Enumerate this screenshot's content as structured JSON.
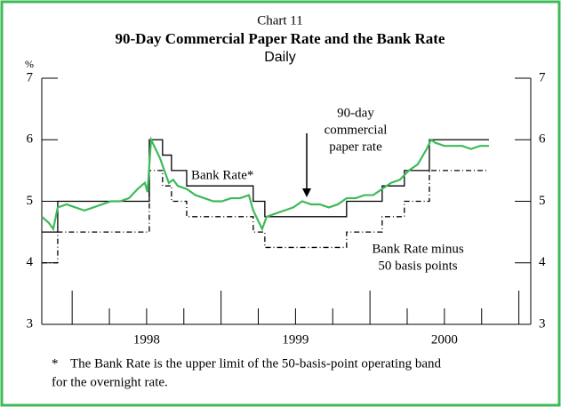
{
  "chart_data": {
    "type": "line",
    "supertitle": "Chart 11",
    "title": "90-Day Commercial Paper Rate and the Bank Rate",
    "subtitle": "Daily",
    "ylabel": "%",
    "xlim": [
      1997.796,
      2001.08
    ],
    "ylim": [
      3,
      7
    ],
    "yticks": [
      3,
      4,
      5,
      6,
      7
    ],
    "xticks": [
      {
        "value": 1998.5,
        "label": "1998"
      },
      {
        "value": 1999.5,
        "label": "1999"
      },
      {
        "value": 2000.5,
        "label": "2000"
      }
    ],
    "xmajorticks": [
      1998,
      1999,
      2000,
      2001
    ],
    "xminorticks": [
      1998.25,
      1998.5,
      1998.75,
      1999.25,
      1999.5,
      1999.75,
      2000.25,
      2000.5,
      2000.75
    ],
    "series": [
      {
        "name": "Bank Rate*",
        "color": "#000000",
        "dash": "none",
        "step": true,
        "x": [
          1997.796,
          1997.903,
          1998.518,
          1998.607,
          1998.667,
          1998.769,
          1999.216,
          1999.294,
          1999.843,
          2000.082,
          2000.231,
          2000.399,
          2000.799
        ],
        "values": [
          4.5,
          5.0,
          6.0,
          5.75,
          5.5,
          5.25,
          5.0,
          4.75,
          5.0,
          5.25,
          5.5,
          6.0,
          6.0
        ]
      },
      {
        "name": "Bank Rate minus 50 basis points",
        "color": "#000000",
        "dash": "6 3 1 3",
        "step": true,
        "x": [
          1997.796,
          1997.903,
          1998.518,
          1998.607,
          1998.667,
          1998.769,
          1999.216,
          1999.294,
          1999.843,
          2000.082,
          2000.231,
          2000.399,
          2000.799
        ],
        "values": [
          4.0,
          4.5,
          5.5,
          5.25,
          5.0,
          4.75,
          4.5,
          4.25,
          4.5,
          4.75,
          5.0,
          5.5,
          5.5
        ]
      },
      {
        "name": "90-day commercial paper rate",
        "color": "#3dbb5a",
        "dash": "none",
        "step": false,
        "x": [
          1997.796,
          1997.843,
          1997.873,
          1997.903,
          1997.963,
          1998.022,
          1998.082,
          1998.142,
          1998.201,
          1998.261,
          1998.321,
          1998.381,
          1998.44,
          1998.488,
          1998.506,
          1998.53,
          1998.56,
          1998.59,
          1998.619,
          1998.649,
          1998.679,
          1998.709,
          1998.769,
          1998.828,
          1998.888,
          1998.948,
          1999.007,
          1999.067,
          1999.127,
          1999.187,
          1999.216,
          1999.246,
          1999.276,
          1999.306,
          1999.366,
          1999.425,
          1999.485,
          1999.545,
          1999.604,
          1999.664,
          1999.724,
          1999.784,
          1999.843,
          1999.903,
          1999.963,
          2000.022,
          2000.082,
          2000.142,
          2000.201,
          2000.261,
          2000.321,
          2000.381,
          2000.41,
          2000.44,
          2000.5,
          2000.56,
          2000.619,
          2000.679,
          2000.739,
          2000.799
        ],
        "values": [
          4.75,
          4.65,
          4.55,
          4.9,
          4.95,
          4.9,
          4.85,
          4.9,
          4.95,
          5.0,
          5.0,
          5.05,
          5.2,
          5.3,
          5.15,
          6.0,
          5.85,
          5.7,
          5.5,
          5.3,
          5.35,
          5.25,
          5.2,
          5.1,
          5.05,
          5.0,
          5.0,
          5.05,
          5.05,
          5.1,
          4.85,
          4.7,
          4.55,
          4.75,
          4.8,
          4.85,
          4.9,
          5.0,
          4.95,
          4.95,
          4.9,
          4.95,
          5.05,
          5.05,
          5.1,
          5.1,
          5.2,
          5.3,
          5.35,
          5.5,
          5.6,
          5.85,
          6.0,
          5.95,
          5.9,
          5.9,
          5.9,
          5.85,
          5.9,
          5.9
        ]
      }
    ],
    "annotations": [
      {
        "lines": [
          "Bank Rate*"
        ]
      },
      {
        "lines": [
          "90-day",
          "commercial",
          "paper rate"
        ]
      },
      {
        "lines": [
          "Bank Rate minus",
          "50 basis points"
        ]
      }
    ],
    "footnote_marker": "*",
    "footnote": [
      "The Bank Rate is the upper limit of the 50-basis-point operating band",
      "for the overnight rate."
    ]
  }
}
